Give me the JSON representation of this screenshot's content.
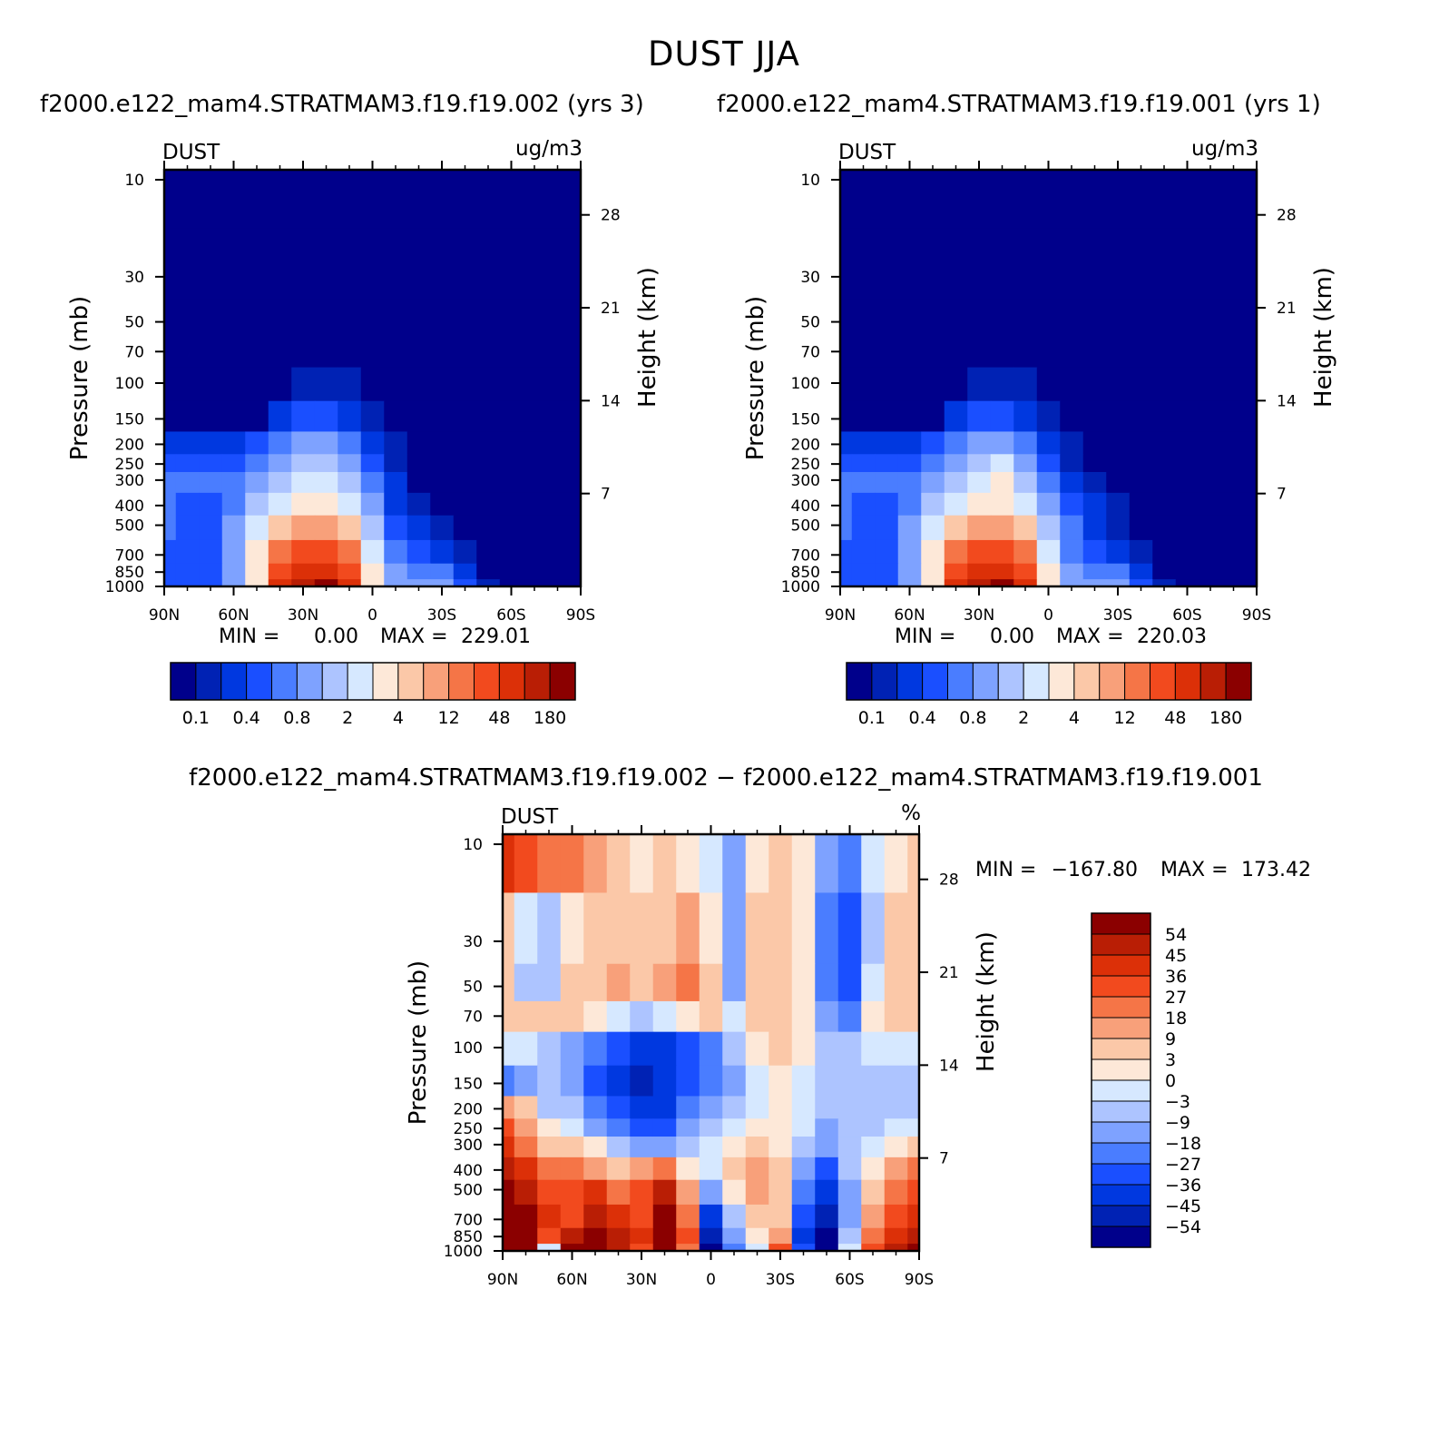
{
  "figure": {
    "title": "DUST JJA",
    "case_a_title": "f2000.e122_mam4.STRATMAM3.f19.f19.002 (yrs 3)",
    "case_b_title": "f2000.e122_mam4.STRATMAM3.f19.f19.001 (yrs 1)",
    "diff_title": "f2000.e122_mam4.STRATMAM3.f19.f19.002 − f2000.e122_mam4.STRATMAM3.f19.f19.001"
  },
  "colors": {
    "abs_scale": [
      "#00008b",
      "#0022b4",
      "#0038e0",
      "#1a4fff",
      "#4a7dff",
      "#7ea2ff",
      "#adc4ff",
      "#d6e8ff",
      "#fde8d8",
      "#fbc8a8",
      "#f8a07a",
      "#f57547",
      "#f24a1e",
      "#dc3008",
      "#b91e05",
      "#8b0000"
    ],
    "diff_scale": [
      "#00008b",
      "#0022b4",
      "#0038e0",
      "#1a4fff",
      "#4a7dff",
      "#7ea2ff",
      "#adc4ff",
      "#d6e8ff",
      "#fde8d8",
      "#fbc8a8",
      "#f8a07a",
      "#f57547",
      "#f24a1e",
      "#dc3008",
      "#b91e05",
      "#8b0000"
    ]
  },
  "chart_data": [
    {
      "type": "heatmap",
      "id": "panel_a",
      "variable": "DUST",
      "units": "ug/m3",
      "xlabel": "",
      "ylabel": "Pressure (mb)",
      "y2label": "Height (km)",
      "x_ticks": [
        "90N",
        "60N",
        "30N",
        "0",
        "30S",
        "60S",
        "90S"
      ],
      "y_ticks": [
        "10",
        "30",
        "50",
        "70",
        "100",
        "150",
        "200",
        "250",
        "300",
        "400",
        "500",
        "700",
        "850",
        "1000"
      ],
      "y_ticks_values": [
        10,
        30,
        50,
        70,
        100,
        150,
        200,
        250,
        300,
        400,
        500,
        700,
        850,
        1000
      ],
      "y2_ticks": [
        "28",
        "21",
        "14",
        "7"
      ],
      "y2_ticks_values": [
        28,
        21,
        14,
        7
      ],
      "ylim": [
        1000,
        10
      ],
      "xlim": [
        90,
        -90
      ],
      "min_label": "MIN =",
      "min_value": "0.00",
      "max_label": "MAX =",
      "max_value": "229.01",
      "legend_labels": [
        "0.1",
        "0.4",
        "0.8",
        "2",
        "4",
        "12",
        "48",
        "180"
      ],
      "field": {
        "lats": [
          90,
          80,
          70,
          60,
          50,
          40,
          30,
          20,
          10,
          0,
          -10,
          -20,
          -30,
          -40,
          -50,
          -60,
          -70,
          -80,
          -90
        ],
        "levels": [
          10,
          30,
          50,
          70,
          100,
          150,
          200,
          250,
          300,
          400,
          500,
          700,
          850,
          1000
        ],
        "class_index": [
          [
            0,
            0,
            0,
            0,
            0,
            0,
            0,
            0,
            0,
            0,
            0,
            0,
            0,
            0,
            0,
            0,
            0,
            0,
            0
          ],
          [
            0,
            0,
            0,
            0,
            0,
            0,
            0,
            0,
            0,
            0,
            0,
            0,
            0,
            0,
            0,
            0,
            0,
            0,
            0
          ],
          [
            0,
            0,
            0,
            0,
            0,
            0,
            0,
            0,
            0,
            0,
            0,
            0,
            0,
            0,
            0,
            0,
            0,
            0,
            0
          ],
          [
            0,
            0,
            0,
            0,
            0,
            0,
            0,
            0,
            0,
            0,
            0,
            0,
            0,
            0,
            0,
            0,
            0,
            0,
            0
          ],
          [
            0,
            0,
            0,
            0,
            0,
            0,
            1,
            1,
            1,
            0,
            0,
            0,
            0,
            0,
            0,
            0,
            0,
            0,
            0
          ],
          [
            0,
            0,
            0,
            0,
            0,
            2,
            3,
            3,
            2,
            1,
            0,
            0,
            0,
            0,
            0,
            0,
            0,
            0,
            0
          ],
          [
            2,
            2,
            2,
            2,
            3,
            4,
            5,
            5,
            4,
            2,
            1,
            0,
            0,
            0,
            0,
            0,
            0,
            0,
            0
          ],
          [
            3,
            3,
            3,
            3,
            4,
            5,
            6,
            6,
            5,
            3,
            1,
            0,
            0,
            0,
            0,
            0,
            0,
            0,
            0
          ],
          [
            4,
            4,
            4,
            4,
            5,
            6,
            7,
            7,
            6,
            4,
            2,
            0,
            0,
            0,
            0,
            0,
            0,
            0,
            0
          ],
          [
            4,
            3,
            3,
            4,
            6,
            7,
            8,
            8,
            7,
            5,
            2,
            1,
            0,
            0,
            0,
            0,
            0,
            0,
            0
          ],
          [
            4,
            3,
            3,
            5,
            7,
            9,
            10,
            10,
            9,
            6,
            3,
            2,
            1,
            0,
            0,
            0,
            0,
            0,
            0
          ],
          [
            3,
            3,
            3,
            5,
            8,
            11,
            12,
            12,
            11,
            7,
            4,
            3,
            2,
            1,
            0,
            0,
            0,
            0,
            0
          ],
          [
            3,
            3,
            3,
            5,
            8,
            12,
            13,
            13,
            12,
            8,
            5,
            4,
            4,
            2,
            0,
            0,
            0,
            0,
            0
          ],
          [
            3,
            3,
            3,
            5,
            8,
            13,
            14,
            15,
            13,
            8,
            5,
            5,
            5,
            3,
            1,
            0,
            0,
            0,
            0
          ]
        ]
      }
    },
    {
      "type": "heatmap",
      "id": "panel_b",
      "variable": "DUST",
      "units": "ug/m3",
      "xlabel": "",
      "ylabel": "Pressure (mb)",
      "y2label": "Height (km)",
      "x_ticks": [
        "90N",
        "60N",
        "30N",
        "0",
        "30S",
        "60S",
        "90S"
      ],
      "y_ticks": [
        "10",
        "30",
        "50",
        "70",
        "100",
        "150",
        "200",
        "250",
        "300",
        "400",
        "500",
        "700",
        "850",
        "1000"
      ],
      "y_ticks_values": [
        10,
        30,
        50,
        70,
        100,
        150,
        200,
        250,
        300,
        400,
        500,
        700,
        850,
        1000
      ],
      "y2_ticks": [
        "28",
        "21",
        "14",
        "7"
      ],
      "y2_ticks_values": [
        28,
        21,
        14,
        7
      ],
      "ylim": [
        1000,
        10
      ],
      "xlim": [
        90,
        -90
      ],
      "min_label": "MIN =",
      "min_value": "0.00",
      "max_label": "MAX =",
      "max_value": "220.03",
      "legend_labels": [
        "0.1",
        "0.4",
        "0.8",
        "2",
        "4",
        "12",
        "48",
        "180"
      ],
      "field": {
        "lats": [
          90,
          80,
          70,
          60,
          50,
          40,
          30,
          20,
          10,
          0,
          -10,
          -20,
          -30,
          -40,
          -50,
          -60,
          -70,
          -80,
          -90
        ],
        "levels": [
          10,
          30,
          50,
          70,
          100,
          150,
          200,
          250,
          300,
          400,
          500,
          700,
          850,
          1000
        ],
        "class_index": [
          [
            0,
            0,
            0,
            0,
            0,
            0,
            0,
            0,
            0,
            0,
            0,
            0,
            0,
            0,
            0,
            0,
            0,
            0,
            0
          ],
          [
            0,
            0,
            0,
            0,
            0,
            0,
            0,
            0,
            0,
            0,
            0,
            0,
            0,
            0,
            0,
            0,
            0,
            0,
            0
          ],
          [
            0,
            0,
            0,
            0,
            0,
            0,
            0,
            0,
            0,
            0,
            0,
            0,
            0,
            0,
            0,
            0,
            0,
            0,
            0
          ],
          [
            0,
            0,
            0,
            0,
            0,
            0,
            0,
            0,
            0,
            0,
            0,
            0,
            0,
            0,
            0,
            0,
            0,
            0,
            0
          ],
          [
            0,
            0,
            0,
            0,
            0,
            0,
            1,
            1,
            1,
            0,
            0,
            0,
            0,
            0,
            0,
            0,
            0,
            0,
            0
          ],
          [
            0,
            0,
            0,
            0,
            0,
            2,
            3,
            3,
            2,
            1,
            0,
            0,
            0,
            0,
            0,
            0,
            0,
            0,
            0
          ],
          [
            2,
            2,
            2,
            2,
            3,
            4,
            5,
            5,
            4,
            2,
            1,
            0,
            0,
            0,
            0,
            0,
            0,
            0,
            0
          ],
          [
            3,
            3,
            3,
            3,
            4,
            5,
            6,
            7,
            5,
            3,
            1,
            0,
            0,
            0,
            0,
            0,
            0,
            0,
            0
          ],
          [
            4,
            4,
            4,
            4,
            5,
            6,
            7,
            8,
            6,
            4,
            2,
            1,
            0,
            0,
            0,
            0,
            0,
            0,
            0
          ],
          [
            4,
            3,
            3,
            4,
            6,
            7,
            8,
            8,
            7,
            5,
            3,
            2,
            1,
            0,
            0,
            0,
            0,
            0,
            0
          ],
          [
            4,
            3,
            3,
            5,
            7,
            9,
            10,
            10,
            9,
            6,
            4,
            2,
            1,
            0,
            0,
            0,
            0,
            0,
            0
          ],
          [
            3,
            3,
            3,
            5,
            8,
            11,
            12,
            12,
            11,
            7,
            4,
            3,
            2,
            1,
            0,
            0,
            0,
            0,
            0
          ],
          [
            3,
            3,
            3,
            5,
            8,
            12,
            13,
            13,
            12,
            8,
            5,
            4,
            4,
            2,
            0,
            0,
            0,
            0,
            0
          ],
          [
            3,
            3,
            3,
            5,
            8,
            13,
            14,
            15,
            13,
            8,
            5,
            5,
            5,
            3,
            1,
            0,
            0,
            0,
            0
          ]
        ]
      }
    },
    {
      "type": "heatmap",
      "id": "panel_diff",
      "variable": "DUST",
      "units": "%",
      "xlabel": "",
      "ylabel": "Pressure (mb)",
      "y2label": "Height (km)",
      "x_ticks": [
        "90N",
        "60N",
        "30N",
        "0",
        "30S",
        "60S",
        "90S"
      ],
      "y_ticks": [
        "10",
        "30",
        "50",
        "70",
        "100",
        "150",
        "200",
        "250",
        "300",
        "400",
        "500",
        "700",
        "850",
        "1000"
      ],
      "y_ticks_values": [
        10,
        30,
        50,
        70,
        100,
        150,
        200,
        250,
        300,
        400,
        500,
        700,
        850,
        1000
      ],
      "y2_ticks": [
        "28",
        "21",
        "14",
        "7"
      ],
      "y2_ticks_values": [
        28,
        21,
        14,
        7
      ],
      "ylim": [
        1000,
        10
      ],
      "xlim": [
        90,
        -90
      ],
      "min_label": "MIN =",
      "min_value": "−167.80",
      "max_label": "MAX =",
      "max_value": "173.42",
      "legend_labels": [
        "54",
        "45",
        "36",
        "27",
        "18",
        "9",
        "3",
        "0",
        "−3",
        "−9",
        "−18",
        "−27",
        "−36",
        "−45",
        "−54"
      ],
      "field": {
        "lats": [
          90,
          80,
          70,
          60,
          50,
          40,
          30,
          20,
          10,
          0,
          -10,
          -20,
          -30,
          -40,
          -50,
          -60,
          -70,
          -80,
          -90
        ],
        "levels": [
          10,
          30,
          50,
          70,
          100,
          150,
          200,
          250,
          300,
          400,
          500,
          700,
          850,
          1000
        ],
        "class_index": [
          [
            13,
            12,
            11,
            11,
            10,
            9,
            8,
            9,
            8,
            7,
            5,
            8,
            9,
            8,
            5,
            4,
            7,
            8,
            9
          ],
          [
            9,
            7,
            6,
            8,
            9,
            9,
            9,
            9,
            10,
            8,
            5,
            9,
            9,
            8,
            4,
            3,
            6,
            9,
            9
          ],
          [
            9,
            6,
            6,
            9,
            9,
            10,
            9,
            10,
            11,
            9,
            5,
            9,
            9,
            8,
            4,
            3,
            7,
            9,
            9
          ],
          [
            9,
            9,
            9,
            9,
            8,
            7,
            6,
            7,
            8,
            9,
            7,
            9,
            9,
            8,
            5,
            4,
            8,
            9,
            9
          ],
          [
            7,
            7,
            6,
            5,
            4,
            3,
            2,
            2,
            3,
            4,
            6,
            8,
            9,
            8,
            6,
            6,
            7,
            7,
            7
          ],
          [
            4,
            5,
            6,
            5,
            3,
            2,
            1,
            2,
            3,
            4,
            5,
            7,
            8,
            7,
            6,
            6,
            6,
            6,
            6
          ],
          [
            10,
            9,
            6,
            6,
            4,
            3,
            2,
            2,
            4,
            5,
            6,
            7,
            8,
            7,
            6,
            6,
            6,
            6,
            6
          ],
          [
            12,
            10,
            8,
            7,
            5,
            4,
            3,
            3,
            5,
            6,
            7,
            8,
            8,
            7,
            5,
            6,
            6,
            7,
            7
          ],
          [
            13,
            11,
            9,
            9,
            8,
            6,
            5,
            5,
            6,
            7,
            8,
            9,
            8,
            6,
            5,
            6,
            7,
            8,
            9
          ],
          [
            14,
            13,
            11,
            11,
            10,
            9,
            10,
            11,
            8,
            7,
            9,
            10,
            9,
            5,
            3,
            6,
            8,
            10,
            11
          ],
          [
            15,
            14,
            12,
            12,
            13,
            11,
            12,
            14,
            10,
            5,
            8,
            10,
            9,
            4,
            2,
            5,
            9,
            11,
            12
          ],
          [
            15,
            15,
            13,
            12,
            14,
            13,
            12,
            15,
            11,
            2,
            6,
            9,
            9,
            3,
            1,
            5,
            10,
            12,
            13
          ],
          [
            15,
            15,
            12,
            14,
            15,
            14,
            13,
            15,
            12,
            1,
            5,
            8,
            10,
            2,
            0,
            6,
            11,
            13,
            14
          ],
          [
            15,
            15,
            7,
            15,
            15,
            14,
            12,
            15,
            11,
            0,
            4,
            7,
            12,
            3,
            0,
            7,
            12,
            14,
            15
          ]
        ]
      }
    }
  ]
}
